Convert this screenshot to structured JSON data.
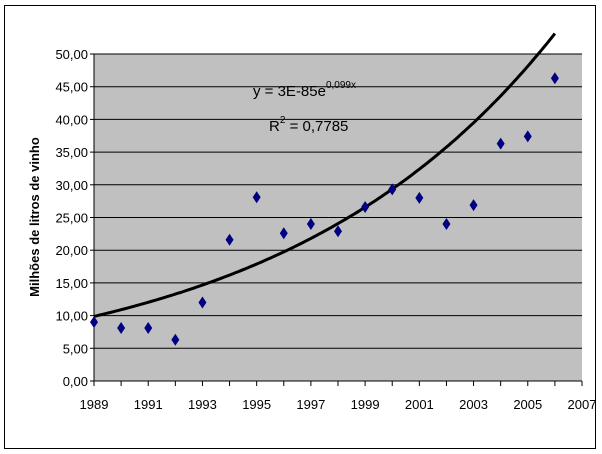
{
  "chart_data": {
    "type": "scatter",
    "title": "",
    "xlabel": "",
    "ylabel": "Milhões de litros de vinho",
    "xlim": [
      1989,
      2007
    ],
    "ylim": [
      0,
      50
    ],
    "x_ticks": [
      "1989",
      "1991",
      "1993",
      "1995",
      "1997",
      "1999",
      "2001",
      "2003",
      "2005",
      "2007"
    ],
    "y_ticks": [
      "0,00",
      "5,00",
      "10,00",
      "15,00",
      "20,00",
      "25,00",
      "30,00",
      "35,00",
      "40,00",
      "45,00",
      "50,00"
    ],
    "grid": "horizontal",
    "plot_background": "#c0c0c0",
    "marker_color": "#000080",
    "trendline_color": "#000000",
    "series": [
      {
        "x": [
          1989,
          1990,
          1991,
          1992,
          1993,
          1994,
          1995,
          1996,
          1997,
          1998,
          1999,
          2000,
          2001,
          2002,
          2003,
          2004,
          2005,
          2006
        ],
        "y": [
          9.0,
          8.1,
          8.1,
          6.3,
          12.0,
          21.6,
          28.1,
          22.6,
          24.0,
          22.9,
          26.6,
          29.3,
          28.0,
          24.0,
          26.9,
          36.3,
          37.4,
          46.3
        ]
      }
    ],
    "trendline": {
      "type": "exponential",
      "a": 3e-85,
      "b": 0.099,
      "equation_main": "y = 3E-85e",
      "equation_exp": "0,099x",
      "r2_main": "R",
      "r2_sup": "2",
      "r2_value": " = 0,7785"
    }
  }
}
